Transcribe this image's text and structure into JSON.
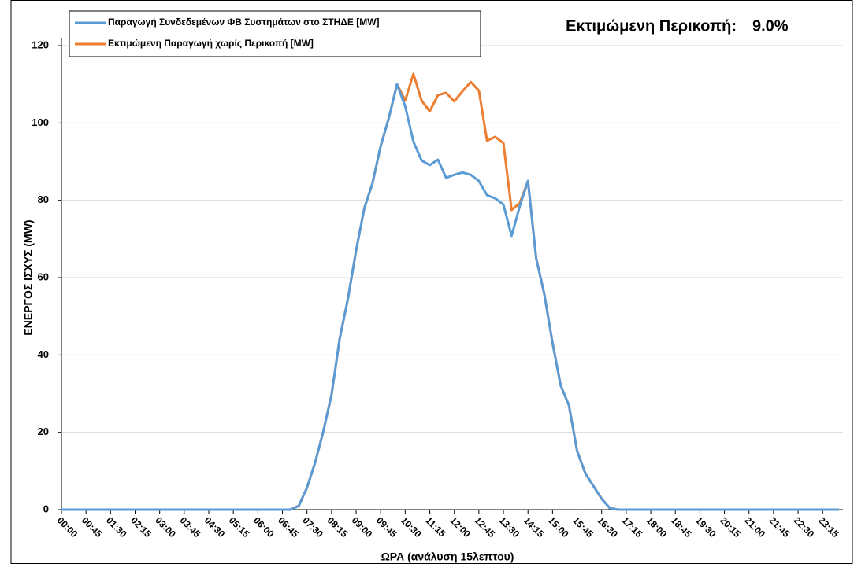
{
  "chart_data": {
    "type": "line",
    "annotation": {
      "text": "Εκτιμώμενη Περικοπή:",
      "value": "9.0%"
    },
    "x_label": "ΩΡΑ (ανάλυση 15λεπτου)",
    "y_label": "ΕΝΕΡΓΟΣ ΙΣΧΥΣ (MW)",
    "categories": [
      "00:00",
      null,
      null,
      "00:45",
      null,
      null,
      "01:30",
      null,
      null,
      "02:15",
      null,
      null,
      "03:00",
      null,
      null,
      "03:45",
      null,
      null,
      "04:30",
      null,
      null,
      "05:15",
      null,
      null,
      "06:00",
      null,
      null,
      "06:45",
      null,
      null,
      "07:30",
      null,
      null,
      "08:15",
      null,
      null,
      "09:00",
      null,
      null,
      "09:45",
      null,
      null,
      "10:30",
      null,
      null,
      "11:15",
      null,
      null,
      "12:00",
      null,
      null,
      "12:45",
      null,
      null,
      "13:30",
      null,
      null,
      "14:15",
      null,
      null,
      "15:00",
      null,
      null,
      "15:45",
      null,
      null,
      "16:30",
      null,
      null,
      "17:15",
      null,
      null,
      "18:00",
      null,
      null,
      "18:45",
      null,
      null,
      "19:30",
      null,
      null,
      "20:15",
      null,
      null,
      "21:00",
      null,
      null,
      "21:45",
      null,
      null,
      "22:30",
      null,
      null,
      "23:15",
      null,
      null
    ],
    "series": [
      {
        "name": "Παραγωγή Συνδεδεμένων ΦΒ Συστημάτων στο ΣΤΗΔΕ [MW]",
        "color": "#5b9bd5",
        "values": [
          0,
          0,
          0,
          0,
          0,
          0,
          0,
          0,
          0,
          0,
          0,
          0,
          0,
          0,
          0,
          0,
          0,
          0,
          0,
          0,
          0,
          0,
          0,
          0,
          0,
          0,
          0,
          0,
          0,
          1,
          5.7,
          12.2,
          20.3,
          29.7,
          44.3,
          54.5,
          67,
          77.9,
          84.4,
          94,
          101.3,
          110,
          104.3,
          95.2,
          90.3,
          89.1,
          90.5,
          85.8,
          86.6,
          87.2,
          86.6,
          85,
          81.3,
          80.5,
          78.9,
          70.8,
          78.5,
          85,
          65,
          55.7,
          43.1,
          32.1,
          27,
          15.2,
          9.4,
          6.1,
          2.8,
          0.4,
          0,
          0,
          0,
          0,
          0,
          0,
          0,
          0,
          0,
          0,
          0,
          0,
          0,
          0,
          0,
          0,
          0,
          0,
          0,
          0,
          0,
          0,
          0,
          0,
          0,
          0,
          0,
          0
        ]
      },
      {
        "name": "Εκτιμώμενη Παραγωγή χωρίς Περικοπή [MW]",
        "color": "#ed7d31",
        "values": [
          0,
          0,
          0,
          0,
          0,
          0,
          0,
          0,
          0,
          0,
          0,
          0,
          0,
          0,
          0,
          0,
          0,
          0,
          0,
          0,
          0,
          0,
          0,
          0,
          0,
          0,
          0,
          0,
          0,
          1,
          5.7,
          12.2,
          20.3,
          29.7,
          44.3,
          54.5,
          67,
          77.9,
          84.4,
          94,
          101.3,
          110,
          105.8,
          112.7,
          105.8,
          103,
          107.2,
          107.8,
          105.6,
          108.2,
          110.6,
          108.4,
          95.4,
          96.4,
          94.8,
          77.5,
          79.3,
          85,
          65,
          55.7,
          43.1,
          32.1,
          27,
          15.2,
          9.4,
          6.1,
          2.8,
          0.4,
          0,
          0,
          0,
          0,
          0,
          0,
          0,
          0,
          0,
          0,
          0,
          0,
          0,
          0,
          0,
          0,
          0,
          0,
          0,
          0,
          0,
          0,
          0,
          0,
          0,
          0,
          0,
          0
        ]
      }
    ],
    "ylim": [
      0,
      120
    ],
    "yticks": [
      0,
      20,
      40,
      60,
      80,
      100,
      120
    ],
    "grid": true
  }
}
